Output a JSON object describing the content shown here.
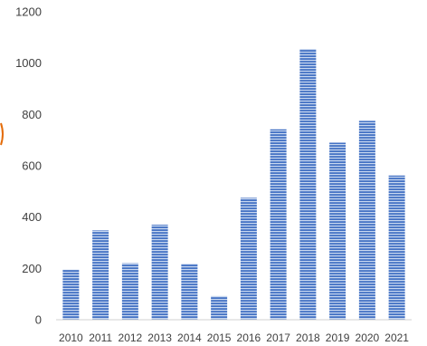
{
  "chart_data": {
    "type": "bar",
    "title": "",
    "xlabel": "",
    "ylabel": "",
    "categories": [
      "2010",
      "2011",
      "2012",
      "2013",
      "2014",
      "2015",
      "2016",
      "2017",
      "2018",
      "2019",
      "2020",
      "2021"
    ],
    "values": [
      195,
      348,
      220,
      370,
      218,
      92,
      475,
      742,
      1055,
      690,
      775,
      562
    ],
    "ylim": [
      0,
      1200
    ],
    "yticks": [
      0,
      200,
      400,
      600,
      800,
      1000,
      1200
    ],
    "grid": false,
    "legend": "none",
    "bar_color": "#4472c4",
    "bar_stripe_color": "#c9d8f0"
  }
}
